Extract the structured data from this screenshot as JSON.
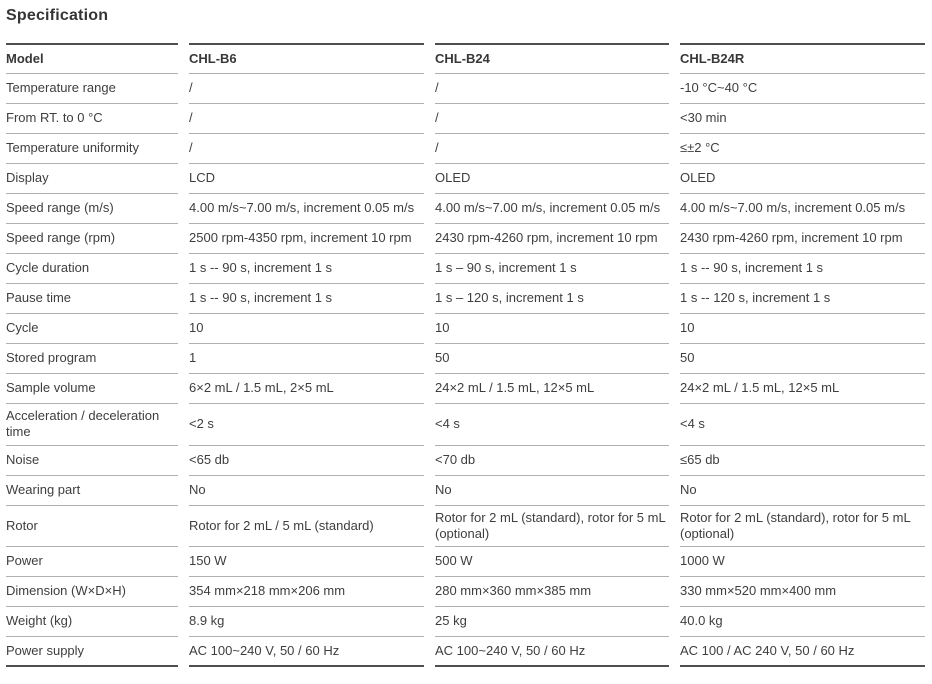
{
  "title": "Specification",
  "table": {
    "columns": [
      "Model",
      "CHL-B6",
      "CHL-B24",
      "CHL-B24R"
    ],
    "rows": [
      {
        "label": "Temperature range",
        "values": [
          "/",
          "/",
          "-10 °C~40 °C"
        ]
      },
      {
        "label": "From RT. to 0 °C",
        "values": [
          "/",
          "/",
          "<30 min"
        ]
      },
      {
        "label": "Temperature uniformity",
        "values": [
          "/",
          "/",
          "≤±2 °C"
        ]
      },
      {
        "label": "Display",
        "values": [
          "LCD",
          "OLED",
          "OLED"
        ]
      },
      {
        "label": "Speed range (m/s)",
        "values": [
          "4.00 m/s~7.00 m/s, increment 0.05 m/s",
          "4.00 m/s~7.00 m/s, increment 0.05 m/s",
          "4.00 m/s~7.00 m/s, increment 0.05 m/s"
        ]
      },
      {
        "label": "Speed range (rpm)",
        "values": [
          "2500 rpm-4350 rpm, increment 10 rpm",
          "2430 rpm-4260 rpm, increment 10 rpm",
          "2430 rpm-4260 rpm, increment 10 rpm"
        ]
      },
      {
        "label": "Cycle duration",
        "values": [
          "1 s -- 90 s, increment 1 s",
          "1 s – 90 s, increment 1 s",
          "1 s -- 90 s, increment 1 s"
        ]
      },
      {
        "label": "Pause time",
        "values": [
          "1 s -- 90 s, increment 1 s",
          "1 s – 120 s, increment 1 s",
          "1 s -- 120 s, increment 1 s"
        ]
      },
      {
        "label": "Cycle",
        "values": [
          "10",
          "10",
          "10"
        ]
      },
      {
        "label": "Stored program",
        "values": [
          "1",
          "50",
          "50"
        ]
      },
      {
        "label": "Sample volume",
        "values": [
          "6×2 mL / 1.5 mL, 2×5 mL",
          "24×2 mL / 1.5 mL, 12×5 mL",
          "24×2 mL / 1.5 mL, 12×5 mL"
        ]
      },
      {
        "label": "Acceleration / deceleration time",
        "values": [
          "<2 s",
          "<4 s",
          "<4 s"
        ]
      },
      {
        "label": "Noise",
        "values": [
          "<65 db",
          "<70 db",
          "≤65 db"
        ]
      },
      {
        "label": "Wearing part",
        "values": [
          "No",
          "No",
          "No"
        ]
      },
      {
        "label": "Rotor",
        "values": [
          "Rotor for 2 mL / 5 mL (standard)",
          "Rotor for 2 mL (standard), rotor for 5 mL (optional)",
          "Rotor for 2 mL (standard), rotor for 5 mL (optional)"
        ]
      },
      {
        "label": "Power",
        "values": [
          "150 W",
          "500 W",
          "1000 W"
        ]
      },
      {
        "label": "Dimension (W×D×H)",
        "values": [
          "354 mm×218 mm×206 mm",
          "280 mm×360 mm×385 mm",
          "330 mm×520 mm×400 mm"
        ]
      },
      {
        "label": "Weight (kg)",
        "values": [
          "8.9 kg",
          "25 kg",
          "40.0 kg"
        ]
      },
      {
        "label": "Power supply",
        "values": [
          "AC 100~240 V, 50 / 60 Hz",
          "AC 100~240 V, 50 / 60 Hz",
          "AC 100 / AC 240 V, 50 / 60 Hz"
        ]
      }
    ]
  }
}
